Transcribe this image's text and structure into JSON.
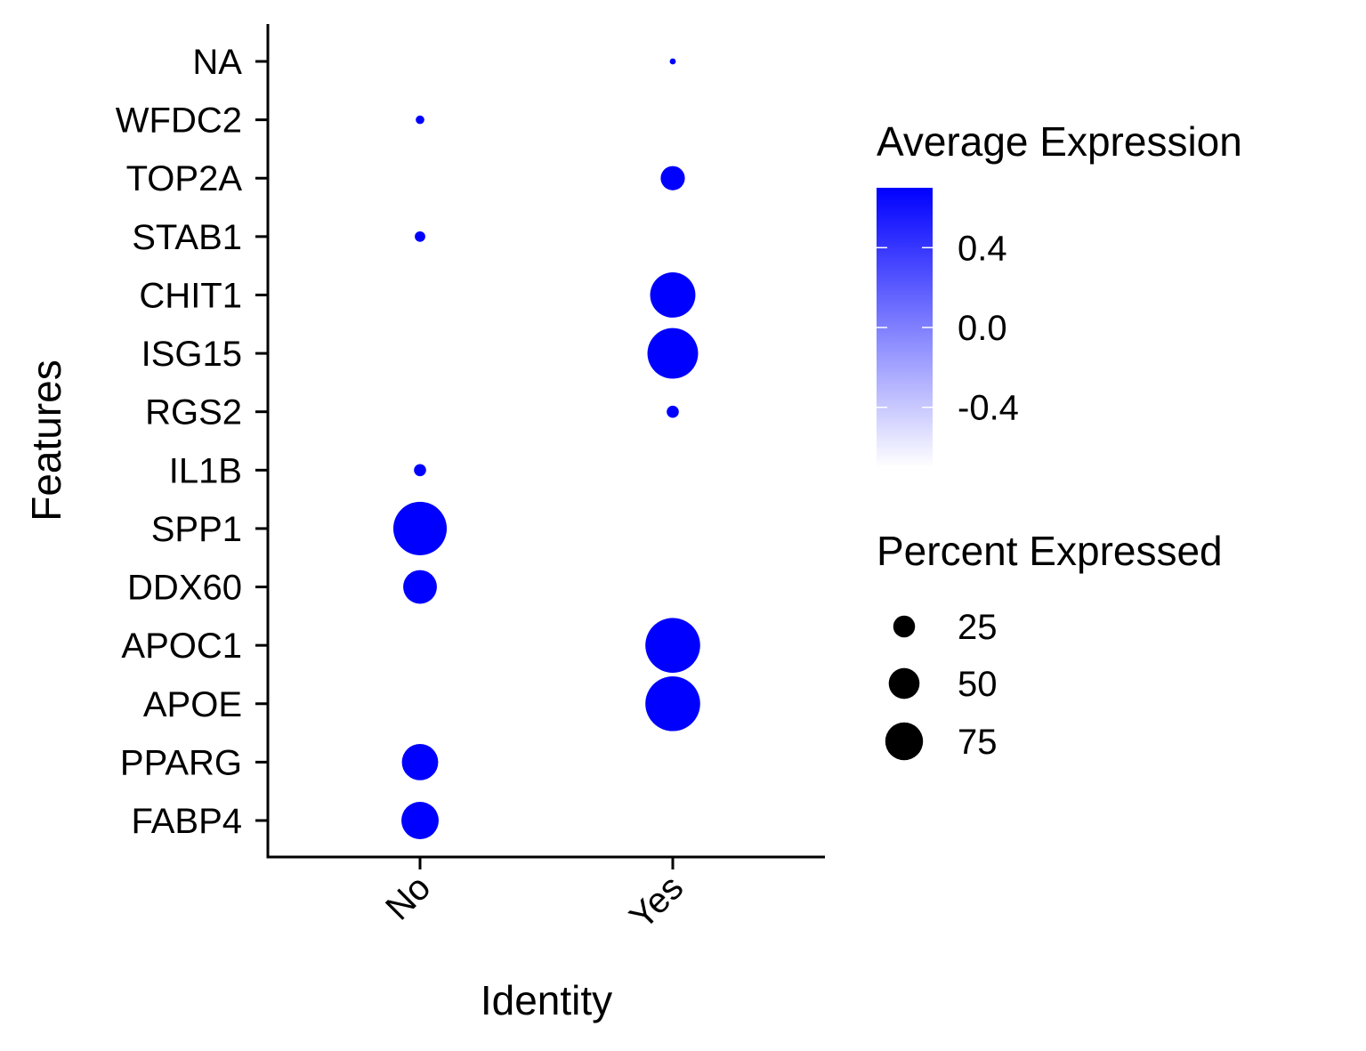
{
  "chart_data": {
    "type": "scatter",
    "subtype": "dot-plot",
    "xlabel": "Identity",
    "ylabel": "Features",
    "x_categories": [
      "No",
      "Yes"
    ],
    "y_categories": [
      "FABP4",
      "PPARG",
      "APOE",
      "APOC1",
      "DDX60",
      "SPP1",
      "IL1B",
      "RGS2",
      "ISG15",
      "CHIT1",
      "STAB1",
      "TOP2A",
      "WFDC2",
      "NA"
    ],
    "points": [
      {
        "x": "No",
        "y": "FABP4",
        "pct": 38,
        "avg": 0.7
      },
      {
        "x": "No",
        "y": "PPARG",
        "pct": 36,
        "avg": 0.7
      },
      {
        "x": "No",
        "y": "DDX60",
        "pct": 31,
        "avg": 0.7
      },
      {
        "x": "No",
        "y": "SPP1",
        "pct": 78,
        "avg": 0.7
      },
      {
        "x": "No",
        "y": "IL1B",
        "pct": 4,
        "avg": 0.7
      },
      {
        "x": "No",
        "y": "STAB1",
        "pct": 3,
        "avg": 0.7
      },
      {
        "x": "No",
        "y": "WFDC2",
        "pct": 2,
        "avg": 0.7
      },
      {
        "x": "Yes",
        "y": "APOE",
        "pct": 82,
        "avg": 0.7
      },
      {
        "x": "Yes",
        "y": "APOC1",
        "pct": 82,
        "avg": 0.7
      },
      {
        "x": "Yes",
        "y": "RGS2",
        "pct": 4,
        "avg": 0.7
      },
      {
        "x": "Yes",
        "y": "ISG15",
        "pct": 70,
        "avg": 0.7
      },
      {
        "x": "Yes",
        "y": "CHIT1",
        "pct": 56,
        "avg": 0.7
      },
      {
        "x": "Yes",
        "y": "TOP2A",
        "pct": 16,
        "avg": 0.7
      },
      {
        "x": "Yes",
        "y": "NA",
        "pct": 1,
        "avg": 0.7
      }
    ],
    "color_legend": {
      "title": "Average Expression",
      "range": [
        -0.7,
        0.7
      ],
      "ticks": [
        0.4,
        0.0,
        -0.4
      ],
      "tick_labels": [
        "0.4",
        "0.0",
        "-0.4"
      ],
      "low_color": "#ffffff",
      "high_color": "#0000ff"
    },
    "size_legend": {
      "title": "Percent Expressed",
      "values": [
        25,
        50,
        75
      ],
      "labels": [
        "25",
        "50",
        "75"
      ],
      "color": "#000000"
    },
    "grid": false,
    "legend_position": "right"
  }
}
